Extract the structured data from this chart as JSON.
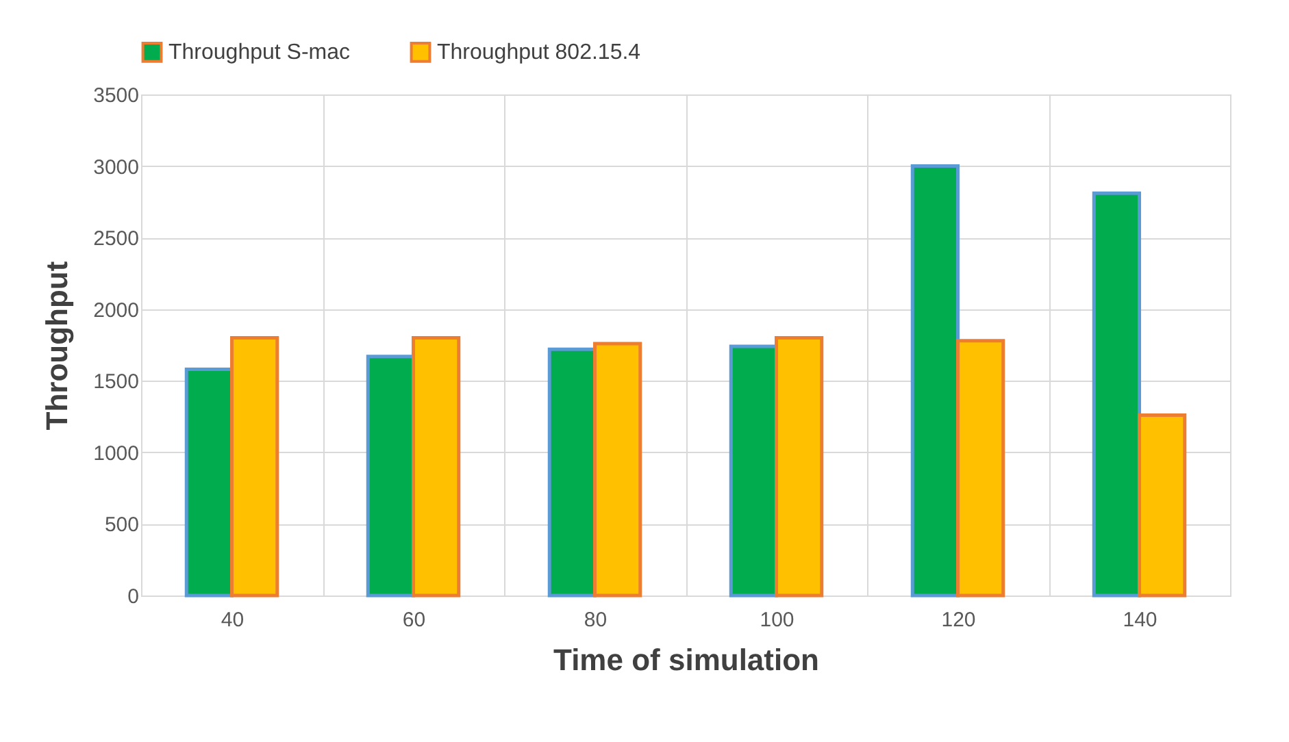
{
  "chart_data": {
    "type": "bar",
    "xlabel": "Time of simulation",
    "ylabel": "Throughput",
    "categories": [
      "40",
      "60",
      "80",
      "100",
      "120",
      "140"
    ],
    "series": [
      {
        "name": "Throughput S-mac",
        "color": "#00ac4e",
        "values": [
          1580,
          1670,
          1720,
          1740,
          3000,
          2810
        ]
      },
      {
        "name": "Throughput 802.15.4",
        "color": "#ffc000",
        "values": [
          1800,
          1800,
          1760,
          1800,
          1780,
          1260
        ]
      }
    ],
    "ylim": [
      0,
      3500
    ],
    "yticks": [
      0,
      500,
      1000,
      1500,
      2000,
      2500,
      3000,
      3500
    ],
    "grid": true,
    "legend": "top"
  }
}
